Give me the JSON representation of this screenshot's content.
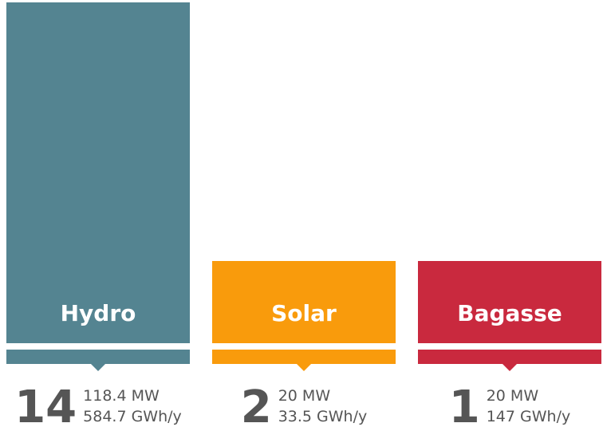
{
  "items": [
    {
      "name": "Hydro",
      "count": "14",
      "capacity": "118.4 MW",
      "generation": "584.7 GWh/y",
      "color": "#548491"
    },
    {
      "name": "Solar",
      "count": "2",
      "capacity": "20 MW",
      "generation": "33.5 GWh/y",
      "color": "#f99b0c"
    },
    {
      "name": "Bagasse",
      "count": "1",
      "capacity": "20 MW",
      "generation": "147 GWh/y",
      "color": "#c9293e"
    }
  ]
}
